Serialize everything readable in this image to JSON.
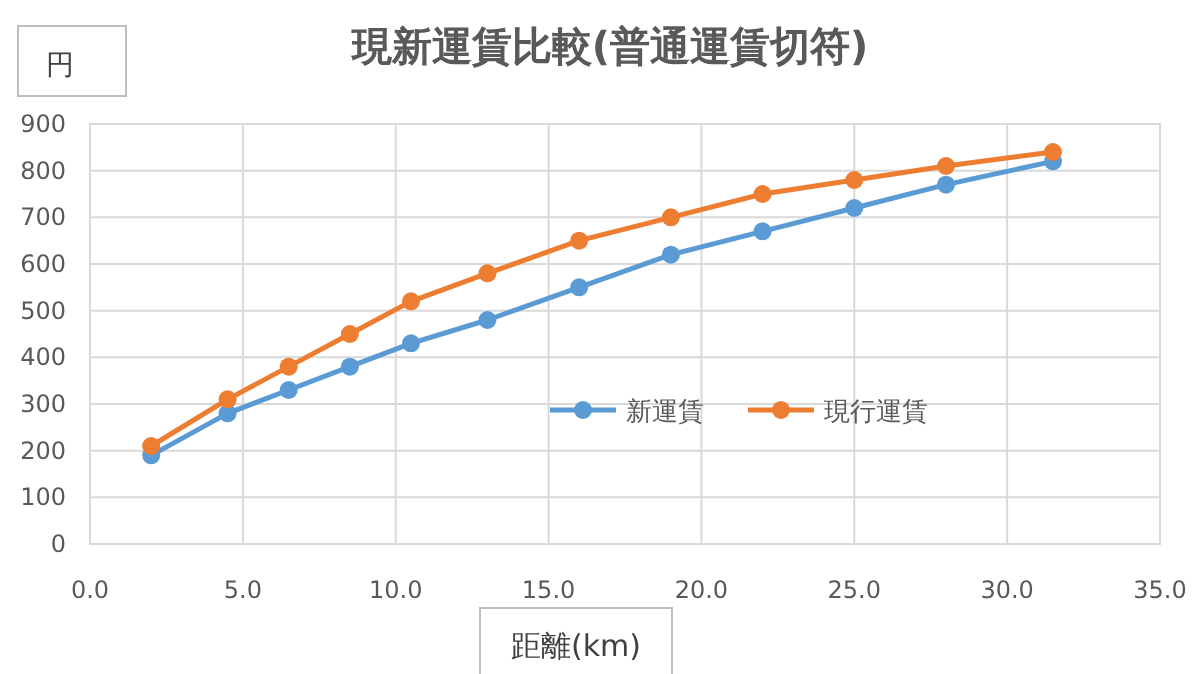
{
  "chart_data": {
    "type": "line",
    "title": "現新運賃比較(普通運賃切符)",
    "ylabel": "円",
    "xlabel": "距離(km)",
    "x": [
      2,
      4.5,
      6.5,
      8.5,
      10.5,
      13,
      16,
      19,
      22,
      25,
      28,
      31.5
    ],
    "series": [
      {
        "name": "新運賃",
        "color": "#5b9bd5",
        "values": [
          190,
          280,
          330,
          380,
          430,
          480,
          550,
          620,
          670,
          720,
          770,
          820
        ]
      },
      {
        "name": "現行運賃",
        "color": "#ed7d31",
        "values": [
          210,
          310,
          380,
          450,
          520,
          580,
          650,
          700,
          750,
          780,
          810,
          840
        ]
      }
    ],
    "xlim": [
      0,
      35
    ],
    "xticks": [
      {
        "value": 0,
        "label": "0.0"
      },
      {
        "value": 5,
        "label": "5.0"
      },
      {
        "value": 10,
        "label": "10.0"
      },
      {
        "value": 15,
        "label": "15.0"
      },
      {
        "value": 20,
        "label": "20.0"
      },
      {
        "value": 25,
        "label": "25.0"
      },
      {
        "value": 30,
        "label": "30.0"
      },
      {
        "value": 35,
        "label": "35.0"
      }
    ],
    "ylim": [
      0,
      900
    ],
    "yticks": [
      0,
      100,
      200,
      300,
      400,
      500,
      600,
      700,
      800,
      900
    ],
    "grid": true,
    "legend": "center",
    "marker": "circle",
    "line_style": "solid"
  }
}
